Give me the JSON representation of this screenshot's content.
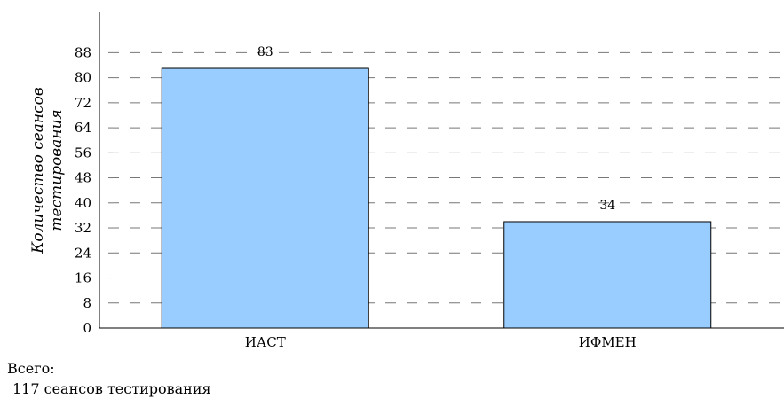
{
  "chart_data": {
    "type": "bar",
    "categories": [
      "ИАСТ",
      "ИФМЕН"
    ],
    "values": [
      83,
      34
    ],
    "data_labels": [
      "83",
      "34"
    ],
    "title": "",
    "xlabel": "",
    "ylabel_lines": [
      "Количество сеансов",
      "тестирования"
    ],
    "ylim": [
      0,
      92
    ],
    "yticks": [
      0,
      8,
      16,
      24,
      32,
      40,
      48,
      56,
      64,
      72,
      80,
      88
    ],
    "grid": true,
    "bar_color": "#99ccff",
    "bar_edge_color": "#000000",
    "grid_color": "#777777"
  },
  "summary": {
    "label": "Всего:",
    "total": "117 сеансов тестирования"
  }
}
